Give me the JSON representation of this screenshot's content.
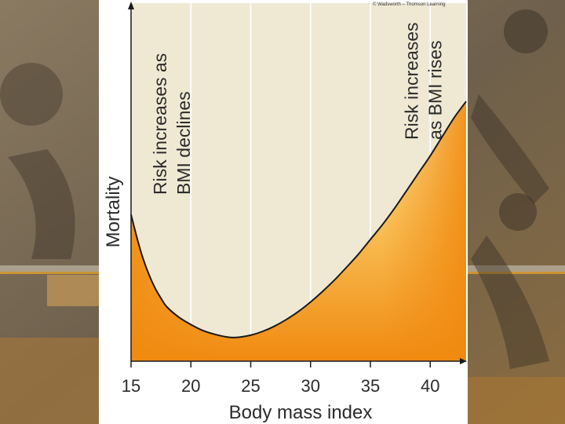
{
  "colors": {
    "plot_background": "#efe9d4",
    "grid": "#ffffff",
    "curve": "#1a1a1a",
    "fill_top": "#fff0b0",
    "fill_mid": "#f9c25a",
    "fill_bottom": "#f08a10",
    "page_background": "#7a6a52"
  },
  "credit": "© Wadsworth – Thomson Learning",
  "chart_data": {
    "type": "area",
    "xlabel": "Body mass index",
    "ylabel": "Mortality",
    "xlim": [
      15,
      43
    ],
    "ylim": [
      0,
      100
    ],
    "xticks": [
      15,
      20,
      25,
      30,
      35,
      40
    ],
    "grid": "vertical",
    "y_tick_labels": false,
    "annotations": [
      {
        "x": 19,
        "lines": [
          "Risk increases as",
          "BMI declines"
        ]
      },
      {
        "x": 40,
        "lines": [
          "Risk increases",
          "as BMI rises"
        ]
      }
    ],
    "x": [
      15,
      15.5,
      16,
      16.5,
      17,
      17.5,
      18,
      19,
      20,
      21,
      22,
      23,
      23.5,
      24,
      25,
      26,
      27,
      28,
      29,
      30,
      31,
      32,
      33,
      34,
      35,
      36,
      37,
      38,
      39,
      40,
      41,
      42,
      43
    ],
    "y": [
      43,
      35,
      28,
      22.5,
      18,
      14.5,
      11.5,
      8,
      5.5,
      3.5,
      2.2,
      1.3,
      1.1,
      1.2,
      1.9,
      3.2,
      5,
      7.3,
      10,
      13.2,
      16.8,
      20.7,
      25,
      29.5,
      34.5,
      39.5,
      45,
      51,
      57,
      63,
      69.5,
      76,
      81.5
    ]
  }
}
